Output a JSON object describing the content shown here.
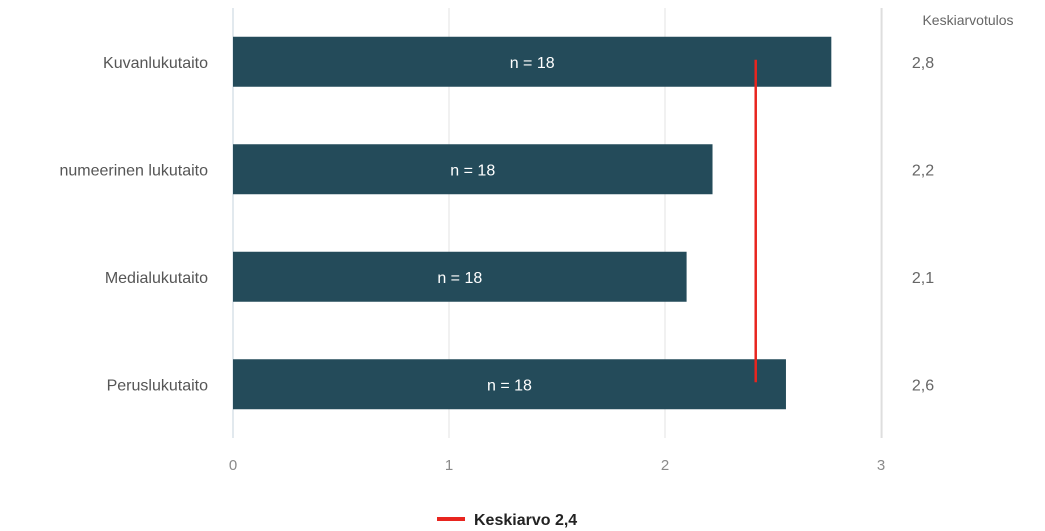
{
  "chart_data": {
    "type": "bar",
    "orientation": "horizontal",
    "categories": [
      "Kuvanlukutaito",
      "numeerinen lukutaito",
      "Medialukutaito",
      "Peruslukutaito"
    ],
    "values": [
      2.77,
      2.22,
      2.1,
      2.56
    ],
    "bar_labels": [
      "n = 18",
      "n = 18",
      "n = 18",
      "n = 18"
    ],
    "score_header": "Keskiarvotulos",
    "scores": [
      "2,8",
      "2,2",
      "2,1",
      "2,6"
    ],
    "xlim": [
      0,
      3
    ],
    "xticks": [
      0,
      1,
      2,
      3
    ],
    "xtick_labels": [
      "0",
      "1",
      "2",
      "3"
    ],
    "grid": true,
    "bar_color": "#244b5a",
    "average": {
      "value": 2.42,
      "color": "#e8251f",
      "legend_label": "Keskiarvo 2,4"
    },
    "legend_position": "bottom-center"
  }
}
